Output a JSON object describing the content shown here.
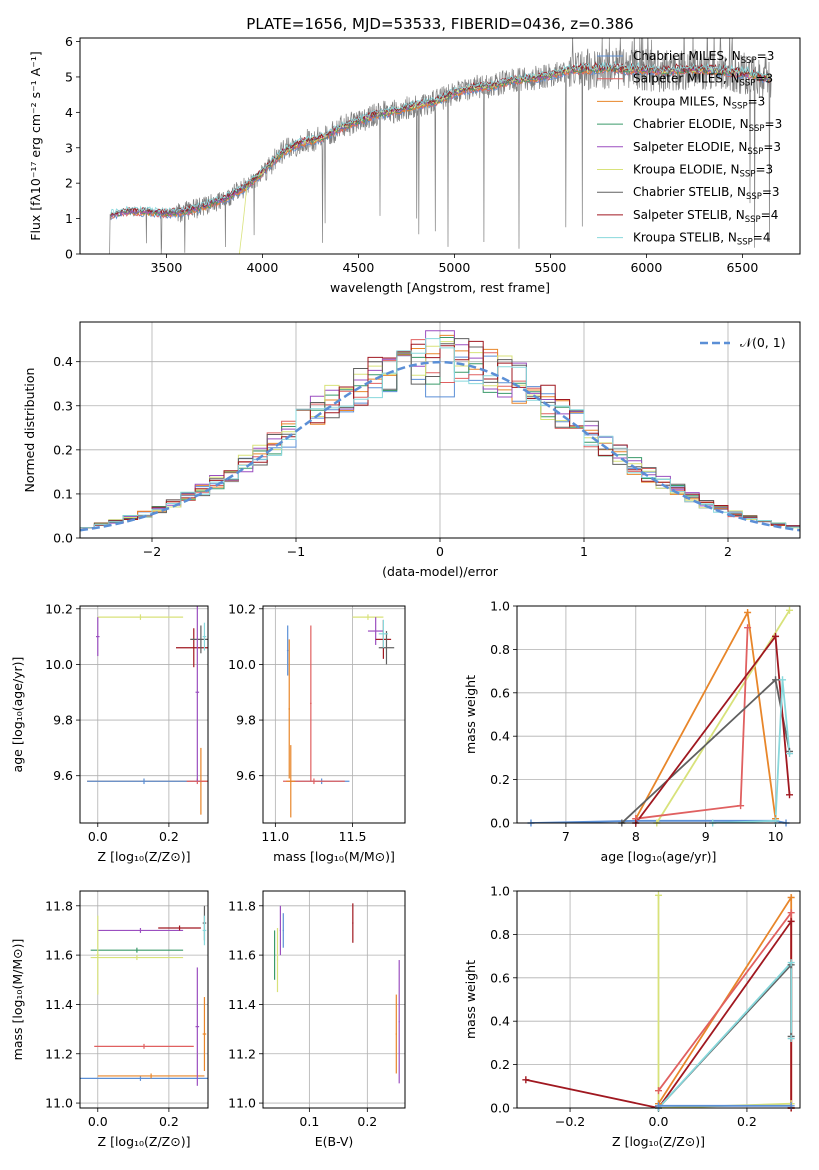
{
  "figure_title": "PLATE=1656, MJD=53533, FIBERID=0436, z=0.386",
  "colors": [
    "#5b8fd6",
    "#e06060",
    "#e8862a",
    "#3a9a6a",
    "#9b4fc0",
    "#d8e27a",
    "#606060",
    "#a01820",
    "#88d8dc"
  ],
  "chart_data": [
    {
      "id": "spectrum",
      "type": "line",
      "title": "PLATE=1656, MJD=53533, FIBERID=0436, z=0.386",
      "xlabel": "wavelength [Angstrom, rest frame]",
      "ylabel": "Flux [fλ10⁻¹⁷ erg cm⁻² s⁻¹ A⁻¹]",
      "xlim": [
        3050,
        6800
      ],
      "ylim": [
        0,
        6.1
      ],
      "xticks": [
        3500,
        4000,
        4500,
        5000,
        5500,
        6000,
        6500
      ],
      "yticks": [
        0,
        1,
        2,
        3,
        4,
        5,
        6
      ],
      "grid": false,
      "legend_position": "right",
      "data_color": "#808080",
      "continuum": {
        "x": [
          3200,
          3300,
          3400,
          3500,
          3600,
          3700,
          3800,
          3900,
          4000,
          4100,
          4200,
          4300,
          4400,
          4500,
          4600,
          4700,
          4800,
          4900,
          5000,
          5100,
          5200,
          5300,
          5400,
          5500,
          5600,
          5700,
          5800,
          5900,
          6000,
          6100,
          6200,
          6300,
          6400,
          6500,
          6600,
          6650
        ],
        "y": [
          1.1,
          1.2,
          1.2,
          1.15,
          1.2,
          1.35,
          1.55,
          1.85,
          2.3,
          2.85,
          3.15,
          3.25,
          3.55,
          3.75,
          3.95,
          4.05,
          4.2,
          4.3,
          4.55,
          4.7,
          4.75,
          4.9,
          4.95,
          5.05,
          5.2,
          5.2,
          5.25,
          5.2,
          5.2,
          5.15,
          5.2,
          5.2,
          5.15,
          5.1,
          5.0,
          4.95
        ]
      },
      "series": [
        {
          "name": "Chabrier MILES, N_SSP=3"
        },
        {
          "name": "Salpeter MILES, N_SSP=3"
        },
        {
          "name": "Kroupa MILES, N_SSP=3"
        },
        {
          "name": "Chabrier ELODIE, N_SSP=3"
        },
        {
          "name": "Salpeter ELODIE, N_SSP=3"
        },
        {
          "name": "Kroupa ELODIE, N_SSP=3"
        },
        {
          "name": "Chabrier STELIB, N_SSP=3"
        },
        {
          "name": "Salpeter STELIB, N_SSP=4"
        },
        {
          "name": "Kroupa STELIB, N_SSP=4"
        }
      ]
    },
    {
      "id": "residuals",
      "type": "line",
      "xlabel": "(data-model)/error",
      "ylabel": "Normed distribution",
      "xlim": [
        -2.5,
        2.5
      ],
      "ylim": [
        0,
        0.49
      ],
      "xticks": [
        -2,
        -1,
        0,
        1,
        2
      ],
      "yticks": [
        0.0,
        0.1,
        0.2,
        0.3,
        0.4
      ],
      "grid": true,
      "legend_position": "top-right",
      "legend": "𝒩(0, 1)",
      "gaussian": {
        "mean": 0,
        "sigma": 1
      }
    },
    {
      "id": "age-vs-Z",
      "type": "scatter",
      "xlabel": "Z [log₁₀(Z/Z⊙)]",
      "ylabel": "age  [log₁₀(age/yr)]",
      "xlim": [
        -0.05,
        0.31
      ],
      "ylim": [
        9.43,
        10.21
      ],
      "xticks": [
        0.0,
        0.2
      ],
      "yticks": [
        9.6,
        9.8,
        10.0,
        10.2
      ],
      "grid": true,
      "points": [
        {
          "x": 0.29,
          "y": 9.58,
          "xerr": 0.32,
          "yerr": 0.12,
          "c": 2
        },
        {
          "x": 0.13,
          "y": 9.58,
          "xerr": 0.16,
          "yerr": 0.01,
          "c": 0
        },
        {
          "x": 0.28,
          "y": 9.58,
          "xerr": 0.03,
          "yerr": 0.01,
          "c": 1
        },
        {
          "x": 0.12,
          "y": 10.17,
          "xerr": 0.12,
          "yerr": 0.01,
          "c": 5
        },
        {
          "x": 0.0,
          "y": 10.1,
          "xerr": 0.005,
          "yerr": 0.07,
          "c": 4
        },
        {
          "x": 0.27,
          "y": 10.06,
          "xerr": 0.05,
          "yerr": 0.07,
          "c": 7
        },
        {
          "x": 0.29,
          "y": 10.09,
          "xerr": 0.03,
          "yerr": 0.05,
          "c": 6
        },
        {
          "x": 0.3,
          "y": 10.1,
          "xerr": 0.005,
          "yerr": 0.05,
          "c": 8
        },
        {
          "x": 0.28,
          "y": 9.9,
          "xerr": 0.005,
          "yerr": 0.32,
          "c": 4
        }
      ]
    },
    {
      "id": "age-vs-mass",
      "type": "scatter",
      "xlabel": "mass [log₁₀(M/M⊙)]",
      "xlim": [
        10.92,
        11.84
      ],
      "ylim": [
        9.43,
        10.21
      ],
      "xticks": [
        11.0,
        11.5
      ],
      "yticks": [
        9.6,
        9.8,
        10.0,
        10.2
      ],
      "grid": true,
      "points": [
        {
          "x": 11.3,
          "y": 9.58,
          "xerr": 0.18,
          "yerr": 0.01,
          "c": 0
        },
        {
          "x": 11.25,
          "y": 9.58,
          "xerr": 0.2,
          "yerr": 0.01,
          "c": 1
        },
        {
          "x": 11.1,
          "y": 9.58,
          "xerr": 0.03,
          "yerr": 0.13,
          "c": 2
        },
        {
          "x": 11.23,
          "y": 9.86,
          "xerr": 0.005,
          "yerr": 0.28,
          "c": 1
        },
        {
          "x": 11.09,
          "y": 9.84,
          "xerr": 0.005,
          "yerr": 0.25,
          "c": 2
        },
        {
          "x": 11.08,
          "y": 10.05,
          "xerr": 0.005,
          "yerr": 0.09,
          "c": 0
        },
        {
          "x": 11.6,
          "y": 10.17,
          "xerr": 0.1,
          "yerr": 0.01,
          "c": 5
        },
        {
          "x": 11.65,
          "y": 10.12,
          "xerr": 0.05,
          "yerr": 0.05,
          "c": 4
        },
        {
          "x": 11.7,
          "y": 10.09,
          "xerr": 0.05,
          "yerr": 0.07,
          "c": 7
        },
        {
          "x": 11.72,
          "y": 10.06,
          "xerr": 0.05,
          "yerr": 0.06,
          "c": 6
        },
        {
          "x": 11.7,
          "y": 10.11,
          "xerr": 0.03,
          "yerr": 0.05,
          "c": 8
        }
      ]
    },
    {
      "id": "mass-weight-vs-age",
      "type": "line",
      "xlabel": "age  [log₁₀(age/yr)]",
      "ylabel": "mass weight",
      "xlim": [
        6.3,
        10.35
      ],
      "ylim": [
        0,
        1.0
      ],
      "xticks": [
        7,
        8,
        9,
        10
      ],
      "yticks": [
        0.0,
        0.2,
        0.4,
        0.6,
        0.8,
        1.0
      ],
      "grid": true,
      "series": [
        {
          "c": 0,
          "x": [
            6.5,
            8.0,
            10.0,
            10.15
          ],
          "y": [
            0.0,
            0.01,
            0.01,
            0.0
          ]
        },
        {
          "c": 2,
          "x": [
            8.0,
            9.6,
            10.0
          ],
          "y": [
            0.02,
            0.97,
            0.02
          ]
        },
        {
          "c": 5,
          "x": [
            8.3,
            10.2
          ],
          "y": [
            0.0,
            0.98
          ]
        },
        {
          "c": 1,
          "x": [
            8.0,
            9.5,
            9.6
          ],
          "y": [
            0.02,
            0.08,
            0.9
          ]
        },
        {
          "c": 6,
          "x": [
            7.8,
            10.0,
            10.2
          ],
          "y": [
            0.0,
            0.66,
            0.33
          ]
        },
        {
          "c": 7,
          "x": [
            8.0,
            10.0,
            10.2
          ],
          "y": [
            0.0,
            0.86,
            0.13
          ]
        },
        {
          "c": 8,
          "x": [
            9.1,
            10.0,
            10.1,
            10.2
          ],
          "y": [
            0.0,
            0.01,
            0.66,
            0.32
          ]
        }
      ]
    },
    {
      "id": "mass-vs-Z",
      "type": "scatter",
      "xlabel": "Z [log₁₀(Z/Z⊙)]",
      "ylabel": "mass [log₁₀(M/M⊙)]",
      "xlim": [
        -0.05,
        0.31
      ],
      "ylim": [
        10.98,
        11.86
      ],
      "xticks": [
        0.0,
        0.2
      ],
      "yticks": [
        11.0,
        11.2,
        11.4,
        11.6,
        11.8
      ],
      "grid": true,
      "points": [
        {
          "x": 0.12,
          "y": 11.1,
          "xerr": 0.2,
          "yerr": 0.01,
          "c": 0
        },
        {
          "x": 0.15,
          "y": 11.11,
          "xerr": 0.15,
          "yerr": 0.01,
          "c": 2
        },
        {
          "x": 0.13,
          "y": 11.23,
          "xerr": 0.14,
          "yerr": 0.01,
          "c": 1
        },
        {
          "x": 0.3,
          "y": 11.28,
          "xerr": 0.005,
          "yerr": 0.15,
          "c": 2
        },
        {
          "x": 0.28,
          "y": 11.31,
          "xerr": 0.005,
          "yerr": 0.24,
          "c": 4
        },
        {
          "x": 0.11,
          "y": 11.59,
          "xerr": 0.13,
          "yerr": 0.01,
          "c": 5
        },
        {
          "x": 0.11,
          "y": 11.62,
          "xerr": 0.13,
          "yerr": 0.01,
          "c": 3
        },
        {
          "x": 0.12,
          "y": 11.7,
          "xerr": 0.12,
          "yerr": 0.01,
          "c": 4
        },
        {
          "x": 0.23,
          "y": 11.71,
          "xerr": 0.06,
          "yerr": 0.01,
          "c": 7
        },
        {
          "x": 0.0,
          "y": 11.6,
          "xerr": 0.005,
          "yerr": 0.16,
          "c": 5
        },
        {
          "x": 0.3,
          "y": 11.73,
          "xerr": 0.005,
          "yerr": 0.07,
          "c": 6
        },
        {
          "x": 0.3,
          "y": 11.7,
          "xerr": 0.005,
          "yerr": 0.06,
          "c": 8
        }
      ]
    },
    {
      "id": "mass-vs-EBV",
      "type": "scatter",
      "xlabel": "E(B-V)",
      "xlim": [
        0.02,
        0.265
      ],
      "ylim": [
        10.98,
        11.86
      ],
      "xticks": [
        0.1,
        0.2
      ],
      "yticks": [
        11.0,
        11.2,
        11.4,
        11.6,
        11.8
      ],
      "grid": true,
      "points": [
        {
          "x": 0.045,
          "y": 11.58,
          "xerr": 0.001,
          "yerr": 0.13,
          "c": 5
        },
        {
          "x": 0.05,
          "y": 11.7,
          "xerr": 0.001,
          "yerr": 0.1,
          "c": 4
        },
        {
          "x": 0.04,
          "y": 11.6,
          "xerr": 0.001,
          "yerr": 0.1,
          "c": 3
        },
        {
          "x": 0.055,
          "y": 11.7,
          "xerr": 0.001,
          "yerr": 0.07,
          "c": 0
        },
        {
          "x": 0.175,
          "y": 11.73,
          "xerr": 0.001,
          "yerr": 0.08,
          "c": 7
        },
        {
          "x": 0.25,
          "y": 11.28,
          "xerr": 0.001,
          "yerr": 0.16,
          "c": 2
        },
        {
          "x": 0.255,
          "y": 11.33,
          "xerr": 0.001,
          "yerr": 0.25,
          "c": 4
        }
      ]
    },
    {
      "id": "mass-weight-vs-Z",
      "type": "line",
      "xlabel": "Z [log₁₀(Z/Z⊙)]",
      "ylabel": "mass weight",
      "xlim": [
        -0.32,
        0.32
      ],
      "ylim": [
        0,
        1.0
      ],
      "xticks": [
        -0.2,
        0.0,
        0.2
      ],
      "yticks": [
        0.0,
        0.2,
        0.4,
        0.6,
        0.8,
        1.0
      ],
      "grid": true,
      "series": [
        {
          "c": 5,
          "x": [
            0.0,
            0.0,
            0.3,
            0.3
          ],
          "y": [
            0.98,
            0.0,
            0.02,
            0.0
          ]
        },
        {
          "c": 2,
          "x": [
            0.0,
            0.3,
            0.3
          ],
          "y": [
            0.02,
            0.97,
            0.0
          ]
        },
        {
          "c": 1,
          "x": [
            0.0,
            0.3,
            0.3
          ],
          "y": [
            0.08,
            0.9,
            0.0
          ]
        },
        {
          "c": 7,
          "x": [
            -0.3,
            0.0,
            0.3,
            0.3
          ],
          "y": [
            0.13,
            0.0,
            0.86,
            0.0
          ]
        },
        {
          "c": 6,
          "x": [
            0.0,
            0.3,
            0.3
          ],
          "y": [
            0.0,
            0.66,
            0.33
          ]
        },
        {
          "c": 8,
          "x": [
            0.0,
            0.3,
            0.3
          ],
          "y": [
            0.0,
            0.67,
            0.32
          ]
        },
        {
          "c": 0,
          "x": [
            0.0,
            0.3
          ],
          "y": [
            0.01,
            0.01
          ]
        }
      ]
    }
  ]
}
